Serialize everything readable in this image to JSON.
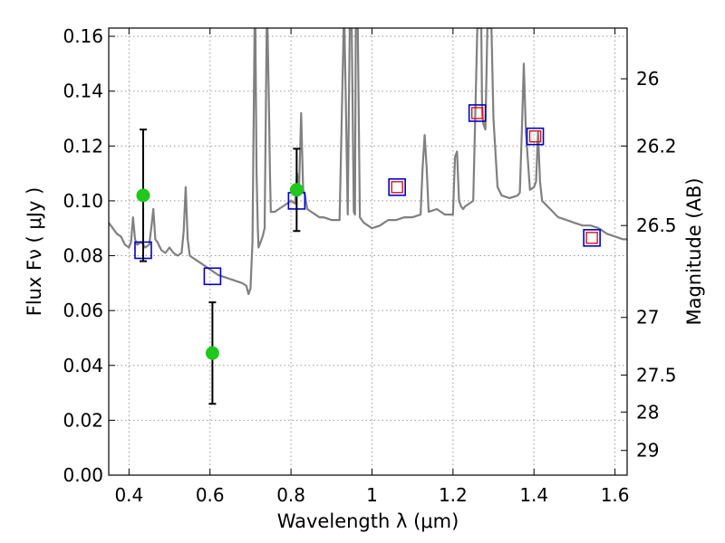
{
  "chart_data": {
    "type": "line",
    "title": "",
    "xlabel": "Wavelength  λ (μm)",
    "ylabel": "Flux  Fν  ( μJy )",
    "y2label": "Magnitude (AB)",
    "xlim": [
      0.35,
      1.63
    ],
    "ylim": [
      0.0,
      0.163
    ],
    "grid": true,
    "x_ticks": [
      0.4,
      0.6,
      0.8,
      1.0,
      1.2,
      1.4,
      1.6
    ],
    "x_tick_labels": [
      "0.4",
      "0.6",
      "0.8",
      "1",
      "1.2",
      "1.4",
      "1.6"
    ],
    "y_ticks": [
      0.0,
      0.02,
      0.04,
      0.06,
      0.08,
      0.1,
      0.12,
      0.14,
      0.16
    ],
    "y_tick_labels": [
      "0.00",
      "0.02",
      "0.04",
      "0.06",
      "0.08",
      "0.10",
      "0.12",
      "0.14",
      "0.16"
    ],
    "y2_ticks": [
      {
        "flux": 0.1445,
        "label": "26"
      },
      {
        "flux": 0.12,
        "label": "26.2"
      },
      {
        "flux": 0.091,
        "label": "26.5"
      },
      {
        "flux": 0.0575,
        "label": "27"
      },
      {
        "flux": 0.0365,
        "label": "27.5"
      },
      {
        "flux": 0.023,
        "label": "28"
      },
      {
        "flux": 0.009,
        "label": "29"
      }
    ],
    "colors": {
      "model": "#808080",
      "photometry": "#1ec81e",
      "model_points": "#0000cc",
      "model_points_inner": "#e01010",
      "errorbar": "#000000",
      "grid": "#999999"
    },
    "series": [
      {
        "kind": "model-spectrum",
        "x": [
          0.35,
          0.36,
          0.37,
          0.38,
          0.39,
          0.4,
          0.405,
          0.41,
          0.415,
          0.42,
          0.43,
          0.44,
          0.45,
          0.455,
          0.46,
          0.465,
          0.47,
          0.48,
          0.49,
          0.5,
          0.51,
          0.52,
          0.53,
          0.535,
          0.54,
          0.545,
          0.55,
          0.56,
          0.58,
          0.6,
          0.62,
          0.64,
          0.66,
          0.68,
          0.69,
          0.695,
          0.7,
          0.705,
          0.71,
          0.712,
          0.715,
          0.718,
          0.72,
          0.725,
          0.73,
          0.735,
          0.74,
          0.742,
          0.745,
          0.748,
          0.75,
          0.76,
          0.77,
          0.78,
          0.79,
          0.8,
          0.81,
          0.815,
          0.82,
          0.825,
          0.83,
          0.835,
          0.84,
          0.85,
          0.86,
          0.87,
          0.88,
          0.9,
          0.92,
          0.93,
          0.932,
          0.935,
          0.94,
          0.945,
          0.95,
          0.955,
          0.958,
          0.96,
          0.965,
          0.97,
          0.98,
          1.0,
          1.02,
          1.04,
          1.06,
          1.08,
          1.1,
          1.12,
          1.125,
          1.13,
          1.135,
          1.14,
          1.16,
          1.18,
          1.2,
          1.205,
          1.21,
          1.215,
          1.22,
          1.225,
          1.23,
          1.24,
          1.25,
          1.26,
          1.27,
          1.272,
          1.275,
          1.28,
          1.285,
          1.29,
          1.295,
          1.3,
          1.31,
          1.32,
          1.34,
          1.36,
          1.365,
          1.37,
          1.375,
          1.38,
          1.39,
          1.4,
          1.405,
          1.41,
          1.415,
          1.42,
          1.44,
          1.46,
          1.48,
          1.5,
          1.52,
          1.54,
          1.56,
          1.58,
          1.6,
          1.62,
          1.63
        ],
        "y": [
          0.092,
          0.09,
          0.088,
          0.087,
          0.084,
          0.083,
          0.085,
          0.094,
          0.086,
          0.084,
          0.085,
          0.083,
          0.084,
          0.09,
          0.097,
          0.086,
          0.085,
          0.082,
          0.081,
          0.083,
          0.081,
          0.08,
          0.081,
          0.089,
          0.105,
          0.086,
          0.08,
          0.079,
          0.077,
          0.075,
          0.073,
          0.072,
          0.071,
          0.07,
          0.069,
          0.066,
          0.068,
          0.085,
          0.163,
          0.163,
          0.11,
          0.09,
          0.083,
          0.085,
          0.087,
          0.09,
          0.163,
          0.163,
          0.14,
          0.11,
          0.096,
          0.096,
          0.097,
          0.098,
          0.099,
          0.1,
          0.099,
          0.11,
          0.104,
          0.132,
          0.104,
          0.102,
          0.097,
          0.096,
          0.095,
          0.094,
          0.094,
          0.093,
          0.093,
          0.163,
          0.163,
          0.14,
          0.095,
          0.163,
          0.163,
          0.096,
          0.095,
          0.163,
          0.163,
          0.094,
          0.092,
          0.09,
          0.091,
          0.093,
          0.093,
          0.094,
          0.094,
          0.095,
          0.112,
          0.124,
          0.112,
          0.096,
          0.097,
          0.095,
          0.095,
          0.116,
          0.118,
          0.1,
          0.098,
          0.097,
          0.098,
          0.099,
          0.1,
          0.163,
          0.163,
          0.132,
          0.128,
          0.126,
          0.163,
          0.163,
          0.163,
          0.13,
          0.105,
          0.102,
          0.101,
          0.102,
          0.103,
          0.125,
          0.15,
          0.125,
          0.104,
          0.105,
          0.107,
          0.125,
          0.107,
          0.1,
          0.097,
          0.094,
          0.093,
          0.092,
          0.091,
          0.091,
          0.09,
          0.088,
          0.087,
          0.086,
          0.086
        ]
      },
      {
        "kind": "photometry",
        "x": [
          0.435,
          0.606,
          0.814
        ],
        "y": [
          0.102,
          0.0445,
          0.104
        ],
        "yerr": [
          0.024,
          0.0185,
          0.015
        ]
      },
      {
        "kind": "model-photometry",
        "x": [
          0.435,
          0.606,
          0.814,
          1.062,
          1.26,
          1.403,
          1.543
        ],
        "y": [
          0.082,
          0.0725,
          0.1,
          0.105,
          0.132,
          0.1235,
          0.0865
        ],
        "inner": [
          false,
          false,
          false,
          true,
          true,
          true,
          true
        ]
      }
    ]
  }
}
